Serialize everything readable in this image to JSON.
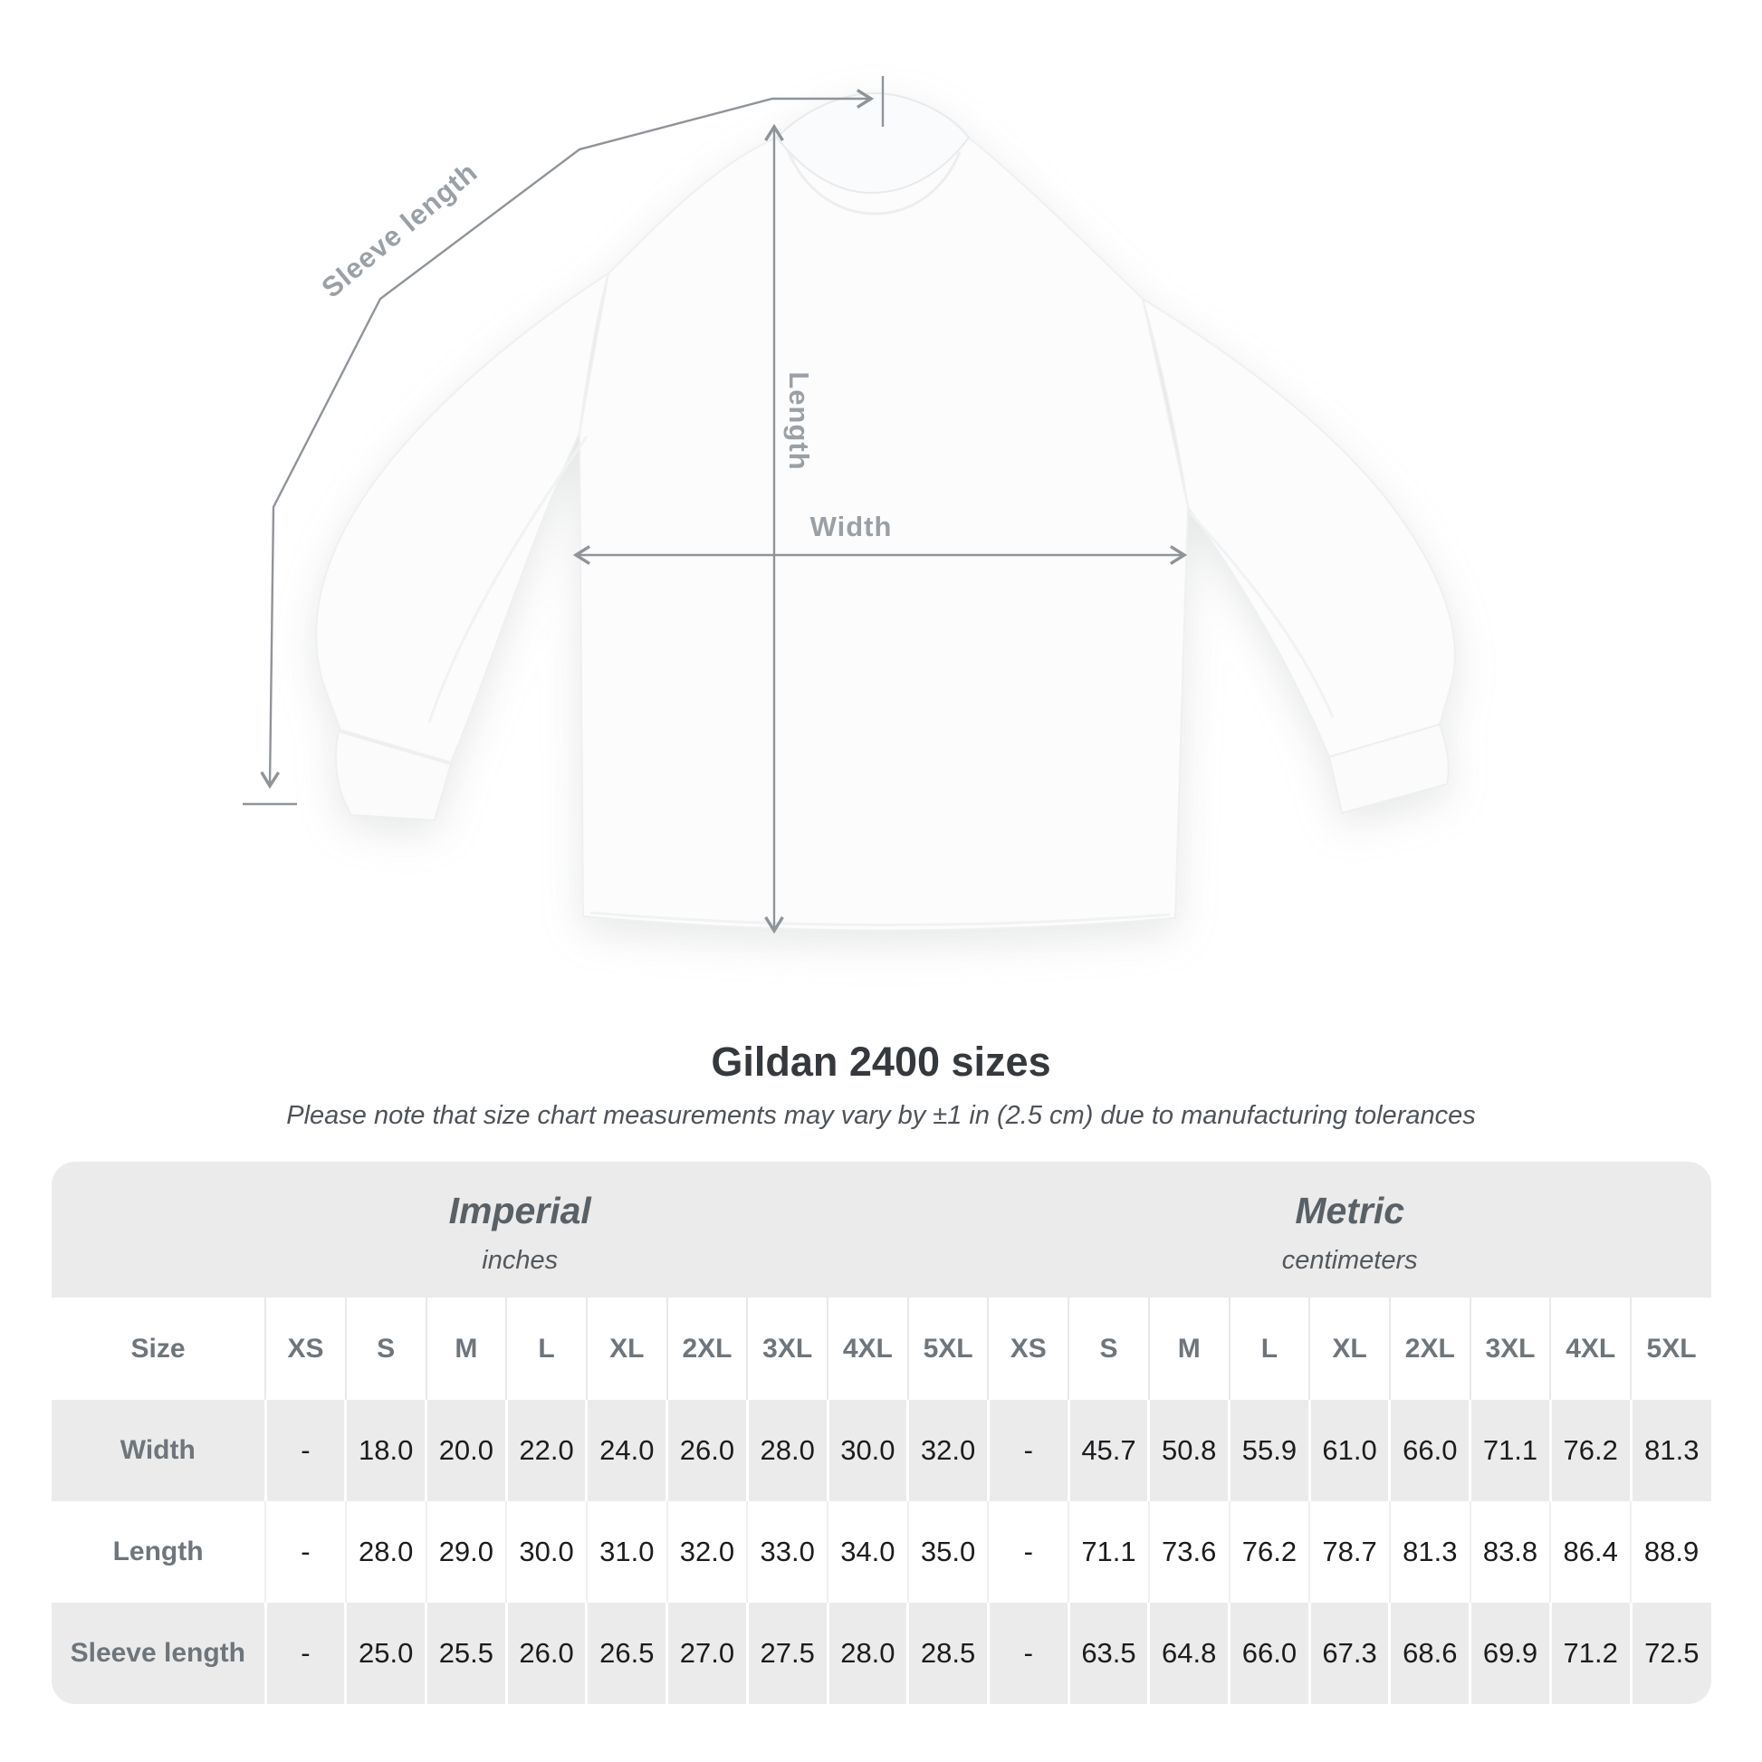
{
  "diagram": {
    "sleeve_length_label": "Sleeve length",
    "length_label": "Length",
    "width_label": "Width"
  },
  "title": "Gildan 2400 sizes",
  "subtitle": "Please note that size chart measurements may vary by ±1 in (2.5 cm) due to manufacturing tolerances",
  "table": {
    "groups": [
      {
        "label": "Imperial",
        "sublabel": "inches"
      },
      {
        "label": "Metric",
        "sublabel": "centimeters"
      }
    ],
    "size_header": "Size",
    "sizes": [
      "XS",
      "S",
      "M",
      "L",
      "XL",
      "2XL",
      "3XL",
      "4XL",
      "5XL"
    ],
    "rows": [
      {
        "label": "Width",
        "imperial": [
          "-",
          "18.0",
          "20.0",
          "22.0",
          "24.0",
          "26.0",
          "28.0",
          "30.0",
          "32.0"
        ],
        "metric": [
          "-",
          "45.7",
          "50.8",
          "55.9",
          "61.0",
          "66.0",
          "71.1",
          "76.2",
          "81.3"
        ]
      },
      {
        "label": "Length",
        "imperial": [
          "-",
          "28.0",
          "29.0",
          "30.0",
          "31.0",
          "32.0",
          "33.0",
          "34.0",
          "35.0"
        ],
        "metric": [
          "-",
          "71.1",
          "73.6",
          "76.2",
          "78.7",
          "81.3",
          "83.8",
          "86.4",
          "88.9"
        ]
      },
      {
        "label": "Sleeve length",
        "imperial": [
          "-",
          "25.0",
          "25.5",
          "26.0",
          "26.5",
          "27.0",
          "27.5",
          "28.0",
          "28.5"
        ],
        "metric": [
          "-",
          "63.5",
          "64.8",
          "66.0",
          "67.3",
          "68.6",
          "69.9",
          "71.2",
          "72.5"
        ]
      }
    ]
  },
  "colors": {
    "measure_line": "#8f9499",
    "measure_label": "#9aa0a5",
    "table_bg": "#ebebeb",
    "value_text": "#1b1c1e",
    "header_text": "#6e757b",
    "title_text": "#35393d"
  },
  "chart_data": {
    "type": "table",
    "title": "Gildan 2400 sizes",
    "note": "Please note that size chart measurements may vary by ±1 in (2.5 cm) due to manufacturing tolerances",
    "unit_groups": [
      {
        "name": "Imperial",
        "unit": "inches"
      },
      {
        "name": "Metric",
        "unit": "centimeters"
      }
    ],
    "categories": [
      "XS",
      "S",
      "M",
      "L",
      "XL",
      "2XL",
      "3XL",
      "4XL",
      "5XL"
    ],
    "series": [
      {
        "name": "Width (in)",
        "values": [
          null,
          18.0,
          20.0,
          22.0,
          24.0,
          26.0,
          28.0,
          30.0,
          32.0
        ]
      },
      {
        "name": "Length (in)",
        "values": [
          null,
          28.0,
          29.0,
          30.0,
          31.0,
          32.0,
          33.0,
          34.0,
          35.0
        ]
      },
      {
        "name": "Sleeve length (in)",
        "values": [
          null,
          25.0,
          25.5,
          26.0,
          26.5,
          27.0,
          27.5,
          28.0,
          28.5
        ]
      },
      {
        "name": "Width (cm)",
        "values": [
          null,
          45.7,
          50.8,
          55.9,
          61.0,
          66.0,
          71.1,
          76.2,
          81.3
        ]
      },
      {
        "name": "Length (cm)",
        "values": [
          null,
          71.1,
          73.6,
          76.2,
          78.7,
          81.3,
          83.8,
          86.4,
          88.9
        ]
      },
      {
        "name": "Sleeve length (cm)",
        "values": [
          null,
          63.5,
          64.8,
          66.0,
          67.3,
          68.6,
          69.9,
          71.2,
          72.5
        ]
      }
    ]
  }
}
